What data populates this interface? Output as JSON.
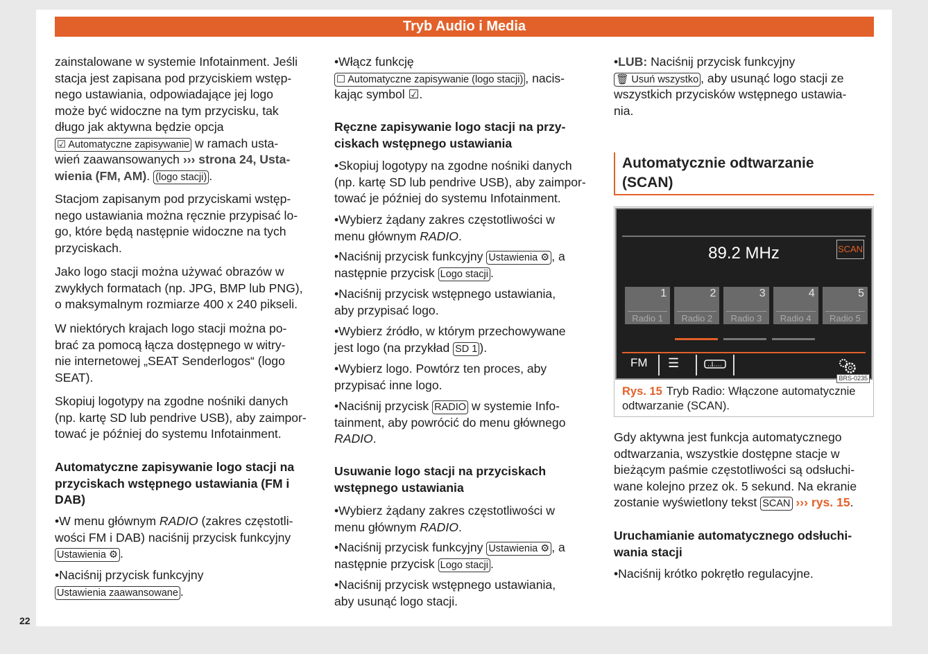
{
  "header": {
    "title": "Tryb Audio i Media"
  },
  "page_number": "22",
  "colors": {
    "accent": "#e2612a"
  },
  "columns": [
    {
      "blocks": [
        {
          "type": "p",
          "lines": [
            [
              "zainstalowane w systemie Infotainment. Jeśli"
            ],
            [
              "stacja jest zapisana pod przyciskiem wstęp-"
            ],
            [
              "nego ustawiania, odpowiadające jej logo"
            ],
            [
              "może być widoczne na tym przycisku, tak"
            ],
            [
              "długo jak aktywna będzie opcja"
            ],
            [
              {
                "k": "☑ Automatyczne zapisywanie"
              },
              " w ramach usta-"
            ],
            [
              "wień zaawansowanych ",
              {
                "b": "››› strona 24, Usta-"
              }
            ],
            [
              {
                "b": "wienia (FM, AM)"
              },
              ". ",
              {
                "k": "(logo stacji)"
              },
              "."
            ]
          ]
        },
        {
          "type": "p",
          "lines": [
            [
              "Stacjom zapisanym pod przyciskami wstęp-"
            ],
            [
              "nego ustawiania można ręcznie przypisać lo-"
            ],
            [
              "go, które będą następnie widoczne na tych"
            ],
            [
              "przyciskach."
            ]
          ]
        },
        {
          "type": "p",
          "lines": [
            [
              "Jako logo stacji można używać obrazów w"
            ],
            [
              "zwykłych formatach (np. JPG, BMP lub PNG),"
            ],
            [
              "o maksymalnym rozmiarze 400 x 240 pikseli."
            ]
          ]
        },
        {
          "type": "p",
          "lines": [
            [
              "W niektórych krajach logo stacji można po-"
            ],
            [
              "brać za pomocą łącza dostępnego w witry-"
            ],
            [
              "nie internetowej „SEAT Senderlogos“ (logo"
            ],
            [
              "SEAT)."
            ]
          ]
        },
        {
          "type": "p",
          "lines": [
            [
              "Skopiuj logotypy na zgodne nośniki danych"
            ],
            [
              "(np. kartę SD lub pendrive USB), aby zaimpor-"
            ],
            [
              "tować je później do systemu Infotainment."
            ]
          ]
        },
        {
          "type": "h",
          "lines": [
            [
              "Automatyczne zapisywanie logo stacji na"
            ],
            [
              "przyciskach wstępnego ustawiania (FM i"
            ],
            [
              "DAB)"
            ]
          ]
        },
        {
          "type": "b",
          "lines": [
            [
              "W menu głównym ",
              {
                "i": "RADIO"
              },
              " (zakres częstotli-"
            ],
            [
              "wości FM i DAB) naciśnij przycisk funkcyjny"
            ],
            [
              {
                "k": "Ustawienia ⚙"
              },
              "."
            ]
          ]
        },
        {
          "type": "b",
          "lines": [
            [
              "Naciśnij przycisk funkcyjny"
            ],
            [
              {
                "k": "Ustawienia zaawansowane"
              },
              "."
            ]
          ]
        }
      ]
    },
    {
      "blocks": [
        {
          "type": "b",
          "lines": [
            [
              "Włącz funkcję"
            ],
            [
              {
                "k": "☐ Automatyczne zapisywanie (logo stacji)"
              },
              ", nacis-"
            ],
            [
              "kając symbol ☑."
            ]
          ]
        },
        {
          "type": "h",
          "lines": [
            [
              "Ręczne zapisywanie logo stacji na przy-"
            ],
            [
              "ciskach wstępnego ustawiania"
            ]
          ]
        },
        {
          "type": "b",
          "lines": [
            [
              "Skopiuj logotypy na zgodne nośniki danych"
            ],
            [
              "(np. kartę SD lub pendrive USB), aby zaimpor-"
            ],
            [
              "tować je później do systemu Infotainment."
            ]
          ]
        },
        {
          "type": "b",
          "lines": [
            [
              "Wybierz żądany zakres częstotliwości w"
            ],
            [
              "menu głównym ",
              {
                "i": "RADIO"
              },
              "."
            ]
          ]
        },
        {
          "type": "b",
          "lines": [
            [
              "Naciśnij przycisk funkcyjny ",
              {
                "k": "Ustawienia ⚙"
              },
              ", a"
            ],
            [
              "następnie przycisk ",
              {
                "k": "Logo stacji"
              },
              "."
            ]
          ]
        },
        {
          "type": "b",
          "lines": [
            [
              "Naciśnij przycisk wstępnego ustawiania,"
            ],
            [
              "aby przypisać logo."
            ]
          ]
        },
        {
          "type": "b",
          "lines": [
            [
              "Wybierz źródło, w którym przechowywane"
            ],
            [
              "jest logo (na przykład ",
              {
                "k": "SD 1"
              },
              ")."
            ]
          ]
        },
        {
          "type": "b",
          "lines": [
            [
              "Wybierz logo. Powtórz ten proces, aby"
            ],
            [
              "przypisać inne logo."
            ]
          ]
        },
        {
          "type": "b",
          "lines": [
            [
              "Naciśnij przycisk ",
              {
                "k": "RADIO"
              },
              " w systemie Info-"
            ],
            [
              "tainment, aby powrócić do menu głównego"
            ],
            [
              {
                "i": "RADIO"
              },
              "."
            ]
          ]
        },
        {
          "type": "h",
          "lines": [
            [
              "Usuwanie logo stacji na przyciskach"
            ],
            [
              "wstępnego ustawiania"
            ]
          ]
        },
        {
          "type": "b",
          "lines": [
            [
              "Wybierz żądany zakres częstotliwości w"
            ],
            [
              "menu głównym ",
              {
                "i": "RADIO"
              },
              "."
            ]
          ]
        },
        {
          "type": "b",
          "lines": [
            [
              "Naciśnij przycisk funkcyjny ",
              {
                "k": "Ustawienia ⚙"
              },
              ", a"
            ],
            [
              "następnie przycisk ",
              {
                "k": "Logo stacji"
              },
              "."
            ]
          ]
        },
        {
          "type": "b",
          "lines": [
            [
              "Naciśnij przycisk wstępnego ustawiania,"
            ],
            [
              "aby usunąć logo stacji."
            ]
          ]
        }
      ]
    },
    {
      "blocks": [
        {
          "type": "b",
          "lines": [
            [
              {
                "b": "LUB:"
              },
              " Naciśnij przycisk funkcyjny"
            ],
            [
              {
                "k": "🗑 Usuń wszystko"
              },
              ", aby usunąć logo stacji ze"
            ],
            [
              "wszystkich przycisków wstępnego ustawia-"
            ],
            [
              "nia."
            ]
          ]
        },
        {
          "type": "p",
          "lines": [
            [
              "Gdy aktywna jest funkcja automatycznego"
            ],
            [
              "odtwarzania, wszystkie dostępne stacje w"
            ],
            [
              "bieżącym paśmie częstotliwości są odsłuchi-"
            ],
            [
              "wane kolejno przez ok. 5 sekund. Na ekranie"
            ],
            [
              "zostanie wyświetlony tekst ",
              {
                "k": "SCAN"
              },
              " ",
              {
                "r": "››› rys. 15"
              },
              "."
            ]
          ]
        },
        {
          "type": "h",
          "lines": [
            [
              "Uruchamianie automatycznego odsłuchi-"
            ],
            [
              "wania stacji"
            ]
          ]
        },
        {
          "type": "b",
          "lines": [
            [
              "Naciśnij krótko pokrętło regulacyjne."
            ]
          ]
        }
      ]
    }
  ],
  "section": {
    "title_line1": "Automatycznie odtwarzanie",
    "title_line2": "(SCAN)"
  },
  "figure": {
    "frequency": "89.2 MHz",
    "scan_label": "SCAN",
    "presets": [
      {
        "num": "1",
        "name": "Radio 1"
      },
      {
        "num": "2",
        "name": "Radio 2"
      },
      {
        "num": "3",
        "name": "Radio 3"
      },
      {
        "num": "4",
        "name": "Radio 4"
      },
      {
        "num": "5",
        "name": "Radio 5"
      }
    ],
    "band": "FM",
    "active_page": 1,
    "page_count": 3,
    "icons": [
      "list-icon",
      "tuner-scale-icon",
      "settings-gears-icon"
    ],
    "code": "BRS-0235",
    "caption_label": "Rys. 15",
    "caption_line1": "Tryb Radio: Włączone automatycznie",
    "caption_line2": "odtwarzanie (SCAN)."
  }
}
